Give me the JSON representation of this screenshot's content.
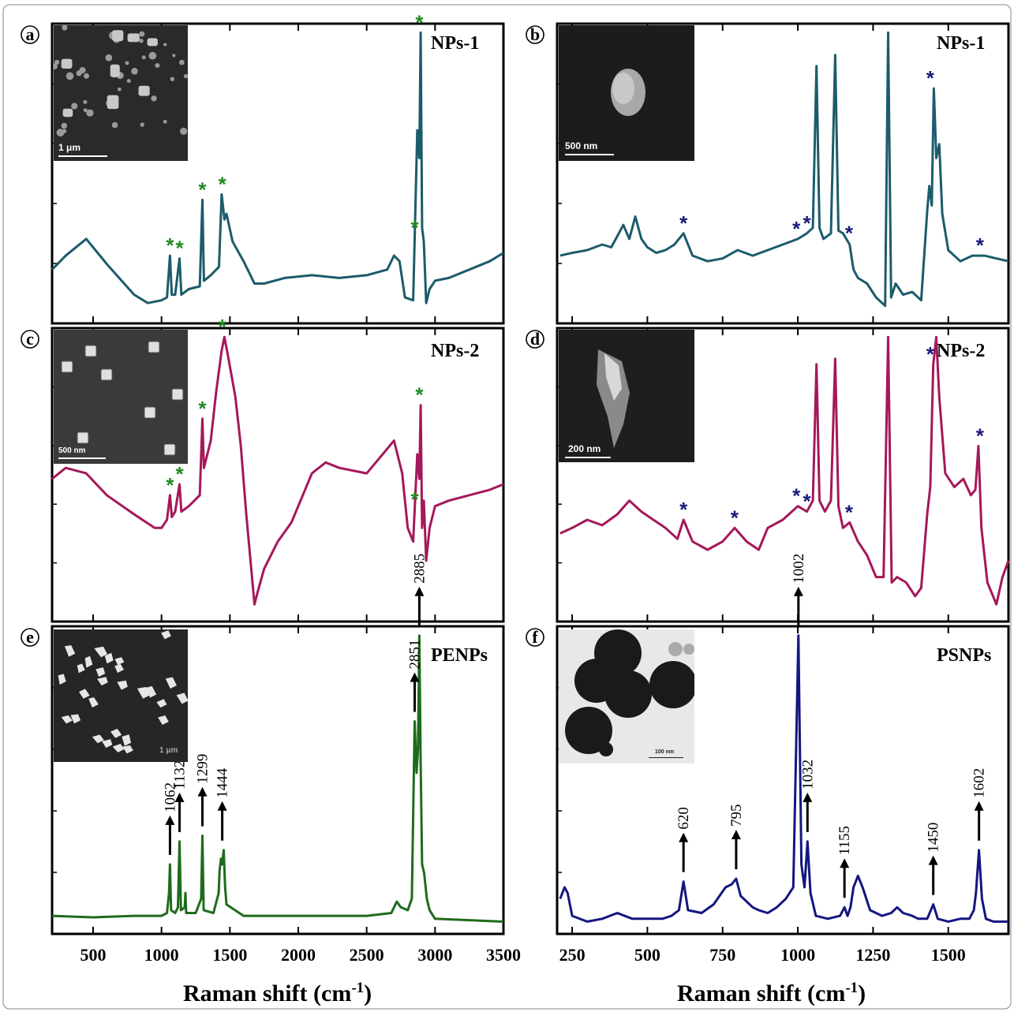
{
  "colors": {
    "np1": "#1c5b6b",
    "np2": "#a5185a",
    "pe": "#1f6b1c",
    "ps": "#141680",
    "star_green": "#1f8a1f",
    "star_blue": "#1a1a7a"
  },
  "x_axis_label": {
    "main": "Raman shift (cm",
    "sup": "-1",
    "close": ")"
  },
  "chart_data": [
    {
      "panel": "a",
      "title": "NPs-1",
      "type": "line",
      "xlim": [
        200,
        3500
      ],
      "series": [
        {
          "color": "#1c5b6b",
          "x": [
            200,
            300,
            450,
            600,
            800,
            900,
            1000,
            1040,
            1062,
            1075,
            1100,
            1132,
            1145,
            1200,
            1280,
            1299,
            1310,
            1360,
            1420,
            1440,
            1460,
            1475,
            1520,
            1600,
            1680,
            1750,
            1900,
            2100,
            2300,
            2500,
            2650,
            2700,
            2740,
            2780,
            2840,
            2870,
            2885,
            2895,
            2905,
            2918,
            2935,
            2960,
            3000,
            3100,
            3250,
            3400,
            3500
          ],
          "y": [
            0.15,
            0.2,
            0.26,
            0.17,
            0.06,
            0.03,
            0.04,
            0.05,
            0.2,
            0.06,
            0.06,
            0.19,
            0.06,
            0.08,
            0.09,
            0.4,
            0.11,
            0.13,
            0.16,
            0.42,
            0.33,
            0.35,
            0.25,
            0.18,
            0.1,
            0.1,
            0.12,
            0.13,
            0.12,
            0.13,
            0.15,
            0.2,
            0.18,
            0.05,
            0.04,
            0.65,
            0.55,
            1.0,
            0.3,
            0.25,
            0.03,
            0.08,
            0.11,
            0.12,
            0.15,
            0.18,
            0.21
          ]
        }
      ],
      "peaks": [
        1062,
        1132,
        1299,
        1444,
        2851,
        2885
      ],
      "marker": "*",
      "xticks": [
        500,
        1000,
        1500,
        2000,
        2500,
        3000,
        3500
      ],
      "inset": {
        "scale_text": "1 μm",
        "style": "sem-many"
      }
    },
    {
      "panel": "b",
      "title": "NPs-1",
      "type": "line",
      "xlim": [
        200,
        1700
      ],
      "series": [
        {
          "color": "#1c5b6b",
          "x": [
            210,
            250,
            300,
            350,
            380,
            400,
            420,
            440,
            460,
            480,
            500,
            530,
            560,
            590,
            620,
            650,
            700,
            750,
            800,
            850,
            900,
            950,
            1000,
            1030,
            1050,
            1062,
            1072,
            1085,
            1110,
            1124,
            1135,
            1150,
            1172,
            1185,
            1200,
            1230,
            1260,
            1290,
            1300,
            1310,
            1325,
            1350,
            1380,
            1410,
            1430,
            1437,
            1445,
            1452,
            1460,
            1470,
            1480,
            1500,
            1540,
            1580,
            1620,
            1660,
            1700
          ],
          "y": [
            0.2,
            0.21,
            0.22,
            0.24,
            0.23,
            0.27,
            0.31,
            0.26,
            0.34,
            0.26,
            0.23,
            0.21,
            0.22,
            0.24,
            0.28,
            0.2,
            0.18,
            0.19,
            0.22,
            0.2,
            0.22,
            0.24,
            0.26,
            0.28,
            0.3,
            0.88,
            0.3,
            0.26,
            0.28,
            0.92,
            0.29,
            0.28,
            0.24,
            0.15,
            0.12,
            0.1,
            0.05,
            0.02,
            1.0,
            0.05,
            0.1,
            0.06,
            0.07,
            0.04,
            0.36,
            0.45,
            0.38,
            0.8,
            0.55,
            0.6,
            0.35,
            0.22,
            0.18,
            0.2,
            0.2,
            0.19,
            0.18
          ]
        }
      ],
      "peaks": [
        620,
        995,
        1030,
        1170,
        1440,
        1605
      ],
      "marker": "*",
      "xticks": [
        250,
        500,
        750,
        1000,
        1250,
        1500
      ],
      "inset": {
        "scale_text": "500 nm",
        "style": "sem-single"
      }
    },
    {
      "panel": "c",
      "title": "NPs-2",
      "type": "line",
      "xlim": [
        200,
        3500
      ],
      "series": [
        {
          "color": "#a5185a",
          "x": [
            200,
            300,
            450,
            600,
            800,
            950,
            1000,
            1040,
            1062,
            1075,
            1100,
            1132,
            1145,
            1200,
            1280,
            1299,
            1310,
            1360,
            1400,
            1440,
            1460,
            1490,
            1540,
            1580,
            1620,
            1680,
            1700,
            1750,
            1850,
            1950,
            2100,
            2200,
            2300,
            2500,
            2600,
            2700,
            2760,
            2800,
            2840,
            2870,
            2885,
            2895,
            2905,
            2918,
            2935,
            2960,
            3000,
            3100,
            3250,
            3400,
            3500
          ],
          "y": [
            0.48,
            0.52,
            0.5,
            0.42,
            0.35,
            0.3,
            0.3,
            0.33,
            0.42,
            0.34,
            0.36,
            0.46,
            0.36,
            0.38,
            0.42,
            0.7,
            0.52,
            0.62,
            0.8,
            0.95,
            1.0,
            0.92,
            0.78,
            0.6,
            0.35,
            0.02,
            0.06,
            0.15,
            0.25,
            0.32,
            0.5,
            0.54,
            0.52,
            0.5,
            0.56,
            0.62,
            0.5,
            0.3,
            0.25,
            0.57,
            0.48,
            0.75,
            0.3,
            0.4,
            0.18,
            0.3,
            0.38,
            0.4,
            0.42,
            0.44,
            0.46
          ]
        }
      ],
      "peaks": [
        1062,
        1132,
        1299,
        1444,
        2851,
        2885
      ],
      "marker": "*",
      "xticks": [
        500,
        1000,
        1500,
        2000,
        2500,
        3000,
        3500
      ],
      "inset": {
        "scale_text": "500 nm",
        "style": "sem-crystals"
      }
    },
    {
      "panel": "d",
      "title": "NPs-2",
      "type": "line",
      "xlim": [
        200,
        1700
      ],
      "series": [
        {
          "color": "#a5185a",
          "x": [
            210,
            250,
            300,
            350,
            400,
            440,
            480,
            520,
            560,
            600,
            620,
            650,
            700,
            750,
            790,
            830,
            870,
            900,
            950,
            1000,
            1030,
            1050,
            1062,
            1072,
            1090,
            1110,
            1124,
            1135,
            1150,
            1172,
            1200,
            1230,
            1260,
            1285,
            1300,
            1312,
            1330,
            1360,
            1390,
            1410,
            1430,
            1440,
            1450,
            1460,
            1470,
            1490,
            1520,
            1550,
            1575,
            1590,
            1600,
            1610,
            1630,
            1660,
            1680,
            1700
          ],
          "y": [
            0.28,
            0.3,
            0.33,
            0.31,
            0.35,
            0.4,
            0.36,
            0.33,
            0.3,
            0.26,
            0.33,
            0.25,
            0.22,
            0.25,
            0.3,
            0.25,
            0.22,
            0.3,
            0.33,
            0.38,
            0.36,
            0.4,
            0.9,
            0.4,
            0.36,
            0.4,
            0.92,
            0.38,
            0.3,
            0.32,
            0.25,
            0.2,
            0.12,
            0.12,
            1.0,
            0.1,
            0.12,
            0.1,
            0.05,
            0.08,
            0.35,
            0.45,
            0.9,
            1.0,
            0.78,
            0.5,
            0.45,
            0.48,
            0.42,
            0.44,
            0.6,
            0.3,
            0.1,
            0.02,
            0.12,
            0.18
          ]
        }
      ],
      "peaks": [
        620,
        790,
        995,
        1030,
        1170,
        1440,
        1605
      ],
      "marker": "*",
      "xticks": [
        250,
        500,
        750,
        1000,
        1250,
        1500
      ],
      "inset": {
        "scale_text": "200 nm",
        "style": "sem-flake"
      }
    },
    {
      "panel": "e",
      "title": "PENPs",
      "type": "line",
      "xlim": [
        200,
        3500
      ],
      "series": [
        {
          "color": "#1f6b1c",
          "x": [
            200,
            500,
            800,
            1000,
            1040,
            1055,
            1062,
            1070,
            1100,
            1120,
            1132,
            1142,
            1170,
            1175,
            1180,
            1250,
            1290,
            1299,
            1308,
            1380,
            1418,
            1425,
            1435,
            1444,
            1455,
            1465,
            1475,
            1600,
            2000,
            2500,
            2680,
            2720,
            2750,
            2800,
            2830,
            2851,
            2865,
            2875,
            2885,
            2895,
            2905,
            2920,
            2940,
            2960,
            3000,
            3500
          ],
          "y": [
            0.02,
            0.015,
            0.02,
            0.02,
            0.03,
            0.1,
            0.2,
            0.04,
            0.03,
            0.05,
            0.28,
            0.04,
            0.05,
            0.1,
            0.03,
            0.03,
            0.08,
            0.3,
            0.04,
            0.03,
            0.1,
            0.18,
            0.22,
            0.2,
            0.25,
            0.12,
            0.06,
            0.02,
            0.02,
            0.02,
            0.03,
            0.07,
            0.05,
            0.04,
            0.08,
            0.7,
            0.52,
            0.6,
            1.0,
            0.55,
            0.2,
            0.17,
            0.08,
            0.04,
            0.01,
            0.0
          ]
        }
      ],
      "peaks": [
        1062,
        1132,
        1299,
        1444,
        2851,
        2885
      ],
      "xticks": [
        500,
        1000,
        1500,
        2000,
        2500,
        3000,
        3500
      ],
      "inset": {
        "scale_text": "1 μm",
        "style": "sem-flakes"
      }
    },
    {
      "panel": "f",
      "title": "PSNPs",
      "type": "line",
      "xlim": [
        200,
        1700
      ],
      "series": [
        {
          "color": "#141680",
          "x": [
            210,
            225,
            235,
            250,
            300,
            350,
            400,
            450,
            500,
            550,
            580,
            605,
            620,
            635,
            680,
            720,
            760,
            780,
            795,
            810,
            830,
            850,
            870,
            900,
            930,
            960,
            985,
            1002,
            1012,
            1022,
            1032,
            1042,
            1060,
            1100,
            1140,
            1155,
            1165,
            1175,
            1185,
            1200,
            1215,
            1240,
            1280,
            1310,
            1330,
            1350,
            1380,
            1400,
            1430,
            1450,
            1465,
            1500,
            1540,
            1570,
            1585,
            1592,
            1602,
            1612,
            1625,
            1650,
            1700
          ],
          "y": [
            0.08,
            0.12,
            0.1,
            0.02,
            0.0,
            0.01,
            0.03,
            0.01,
            0.01,
            0.01,
            0.02,
            0.04,
            0.14,
            0.04,
            0.03,
            0.06,
            0.12,
            0.13,
            0.15,
            0.09,
            0.07,
            0.05,
            0.04,
            0.03,
            0.05,
            0.08,
            0.12,
            1.0,
            0.2,
            0.12,
            0.28,
            0.1,
            0.02,
            0.01,
            0.02,
            0.05,
            0.02,
            0.05,
            0.12,
            0.16,
            0.12,
            0.04,
            0.02,
            0.03,
            0.05,
            0.03,
            0.02,
            0.01,
            0.01,
            0.06,
            0.01,
            0.0,
            0.01,
            0.01,
            0.04,
            0.1,
            0.25,
            0.08,
            0.01,
            0.0,
            0.0
          ]
        }
      ],
      "peaks": [
        620,
        795,
        1002,
        1032,
        1155,
        1450,
        1602
      ],
      "xticks": [
        250,
        500,
        750,
        1000,
        1250,
        1500
      ],
      "inset": {
        "scale_text": "100 nm",
        "style": "tem-spheres"
      }
    }
  ]
}
